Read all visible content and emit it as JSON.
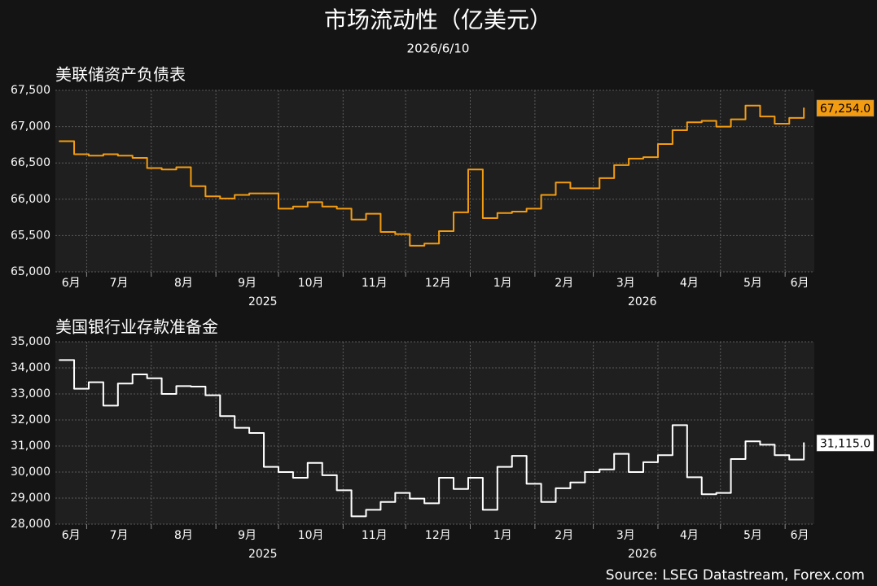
{
  "title": "市场流动性（亿美元）",
  "subtitle": "2026/6/10",
  "source": "Source: LSEG Datastream, Forex.com",
  "chart_data": [
    {
      "type": "line",
      "title": "美联储资产负债表",
      "step": true,
      "x": [
        "2025-06-18",
        "2025-06-25",
        "2025-07-02",
        "2025-07-09",
        "2025-07-16",
        "2025-07-23",
        "2025-07-30",
        "2025-08-06",
        "2025-08-13",
        "2025-08-20",
        "2025-08-27",
        "2025-09-03",
        "2025-09-10",
        "2025-09-17",
        "2025-09-24",
        "2025-10-01",
        "2025-10-08",
        "2025-10-15",
        "2025-10-22",
        "2025-10-29",
        "2025-11-05",
        "2025-11-12",
        "2025-11-19",
        "2025-11-26",
        "2025-12-03",
        "2025-12-10",
        "2025-12-17",
        "2025-12-24",
        "2025-12-31",
        "2026-01-07",
        "2026-01-14",
        "2026-01-21",
        "2026-01-28",
        "2026-02-04",
        "2026-02-11",
        "2026-02-18",
        "2026-02-25",
        "2026-03-04",
        "2026-03-11",
        "2026-03-18",
        "2026-03-25",
        "2026-04-01",
        "2026-04-08",
        "2026-04-15",
        "2026-04-22",
        "2026-04-29",
        "2026-05-06",
        "2026-05-13",
        "2026-05-20",
        "2026-05-27",
        "2026-06-03",
        "2026-06-10"
      ],
      "xlim": [
        "2025-06-16",
        "2026-06-15"
      ],
      "xticks": [
        {
          "value": "2025-06-01",
          "label": "6月"
        },
        {
          "value": "2025-07-01",
          "label": "7月"
        },
        {
          "value": "2025-08-01",
          "label": "8月"
        },
        {
          "value": "2025-09-01",
          "label": "9月"
        },
        {
          "value": "2025-10-01",
          "label": "10月"
        },
        {
          "value": "2025-11-01",
          "label": "11月"
        },
        {
          "value": "2025-12-01",
          "label": "12月"
        },
        {
          "value": "2026-01-01",
          "label": "1月"
        },
        {
          "value": "2026-02-01",
          "label": "2月"
        },
        {
          "value": "2026-03-01",
          "label": "3月"
        },
        {
          "value": "2026-04-01",
          "label": "4月"
        },
        {
          "value": "2026-05-01",
          "label": "5月"
        },
        {
          "value": "2026-06-01",
          "label": "6月"
        }
      ],
      "xgroups": [
        {
          "value": "2025-01-01",
          "label": "2025"
        },
        {
          "value": "2026-01-01",
          "label": "2026"
        }
      ],
      "ylim": [
        65000,
        67500
      ],
      "yticks": [
        {
          "value": 65000,
          "label": "65,000"
        },
        {
          "value": 65500,
          "label": "65,500"
        },
        {
          "value": 66000,
          "label": "66,000"
        },
        {
          "value": 66500,
          "label": "66,500"
        },
        {
          "value": 67000,
          "label": "67,000"
        },
        {
          "value": 67500,
          "label": "67,500"
        }
      ],
      "grid": true,
      "series": [
        {
          "color": "#f39c12",
          "end_label": "67,254.0",
          "values": [
            66800,
            66620,
            66600,
            66620,
            66600,
            66570,
            66430,
            66410,
            66440,
            66180,
            66040,
            66010,
            66060,
            66080,
            66080,
            65870,
            65900,
            65960,
            65900,
            65870,
            65720,
            65800,
            65550,
            65520,
            65360,
            65390,
            65560,
            65820,
            66410,
            65740,
            65810,
            65830,
            65870,
            66060,
            66230,
            66150,
            66150,
            66290,
            66470,
            66560,
            66580,
            66760,
            66950,
            67060,
            67080,
            67000,
            67100,
            67290,
            67140,
            67040,
            67120,
            67254
          ]
        }
      ]
    },
    {
      "type": "line",
      "title": "美国银行业存款准备金",
      "step": true,
      "x": [
        "2025-06-18",
        "2025-06-25",
        "2025-07-02",
        "2025-07-09",
        "2025-07-16",
        "2025-07-23",
        "2025-07-30",
        "2025-08-06",
        "2025-08-13",
        "2025-08-20",
        "2025-08-27",
        "2025-09-03",
        "2025-09-10",
        "2025-09-17",
        "2025-09-24",
        "2025-10-01",
        "2025-10-08",
        "2025-10-15",
        "2025-10-22",
        "2025-10-29",
        "2025-11-05",
        "2025-11-12",
        "2025-11-19",
        "2025-11-26",
        "2025-12-03",
        "2025-12-10",
        "2025-12-17",
        "2025-12-24",
        "2025-12-31",
        "2026-01-07",
        "2026-01-14",
        "2026-01-21",
        "2026-01-28",
        "2026-02-04",
        "2026-02-11",
        "2026-02-18",
        "2026-02-25",
        "2026-03-04",
        "2026-03-11",
        "2026-03-18",
        "2026-03-25",
        "2026-04-01",
        "2026-04-08",
        "2026-04-15",
        "2026-04-22",
        "2026-04-29",
        "2026-05-06",
        "2026-05-13",
        "2026-05-20",
        "2026-05-27",
        "2026-06-03",
        "2026-06-10"
      ],
      "xlim": [
        "2025-06-16",
        "2026-06-15"
      ],
      "xticks": [
        {
          "value": "2025-06-01",
          "label": "6月"
        },
        {
          "value": "2025-07-01",
          "label": "7月"
        },
        {
          "value": "2025-08-01",
          "label": "8月"
        },
        {
          "value": "2025-09-01",
          "label": "9月"
        },
        {
          "value": "2025-10-01",
          "label": "10月"
        },
        {
          "value": "2025-11-01",
          "label": "11月"
        },
        {
          "value": "2025-12-01",
          "label": "12月"
        },
        {
          "value": "2026-01-01",
          "label": "1月"
        },
        {
          "value": "2026-02-01",
          "label": "2月"
        },
        {
          "value": "2026-03-01",
          "label": "3月"
        },
        {
          "value": "2026-04-01",
          "label": "4月"
        },
        {
          "value": "2026-05-01",
          "label": "5月"
        },
        {
          "value": "2026-06-01",
          "label": "6月"
        }
      ],
      "xgroups": [
        {
          "value": "2025-01-01",
          "label": "2025"
        },
        {
          "value": "2026-01-01",
          "label": "2026"
        }
      ],
      "ylim": [
        28000,
        35000
      ],
      "yticks": [
        {
          "value": 28000,
          "label": "28,000"
        },
        {
          "value": 29000,
          "label": "29,000"
        },
        {
          "value": 30000,
          "label": "30,000"
        },
        {
          "value": 31000,
          "label": "31,000"
        },
        {
          "value": 32000,
          "label": "32,000"
        },
        {
          "value": 33000,
          "label": "33,000"
        },
        {
          "value": 34000,
          "label": "34,000"
        },
        {
          "value": 35000,
          "label": "35,000"
        }
      ],
      "grid": true,
      "series": [
        {
          "color": "#ffffff",
          "end_label": "31,115.0",
          "values": [
            34300,
            33200,
            33450,
            32550,
            33400,
            33750,
            33600,
            33000,
            33300,
            33280,
            32950,
            32150,
            31700,
            31500,
            30200,
            30000,
            29780,
            30350,
            29880,
            29300,
            28300,
            28550,
            28850,
            29200,
            28980,
            28800,
            29780,
            29350,
            29780,
            28550,
            30200,
            30620,
            29550,
            28850,
            29380,
            29600,
            30000,
            30100,
            30700,
            30000,
            30380,
            30650,
            31800,
            29800,
            29150,
            29200,
            30500,
            31180,
            31050,
            30650,
            30480,
            31115
          ]
        }
      ]
    }
  ]
}
